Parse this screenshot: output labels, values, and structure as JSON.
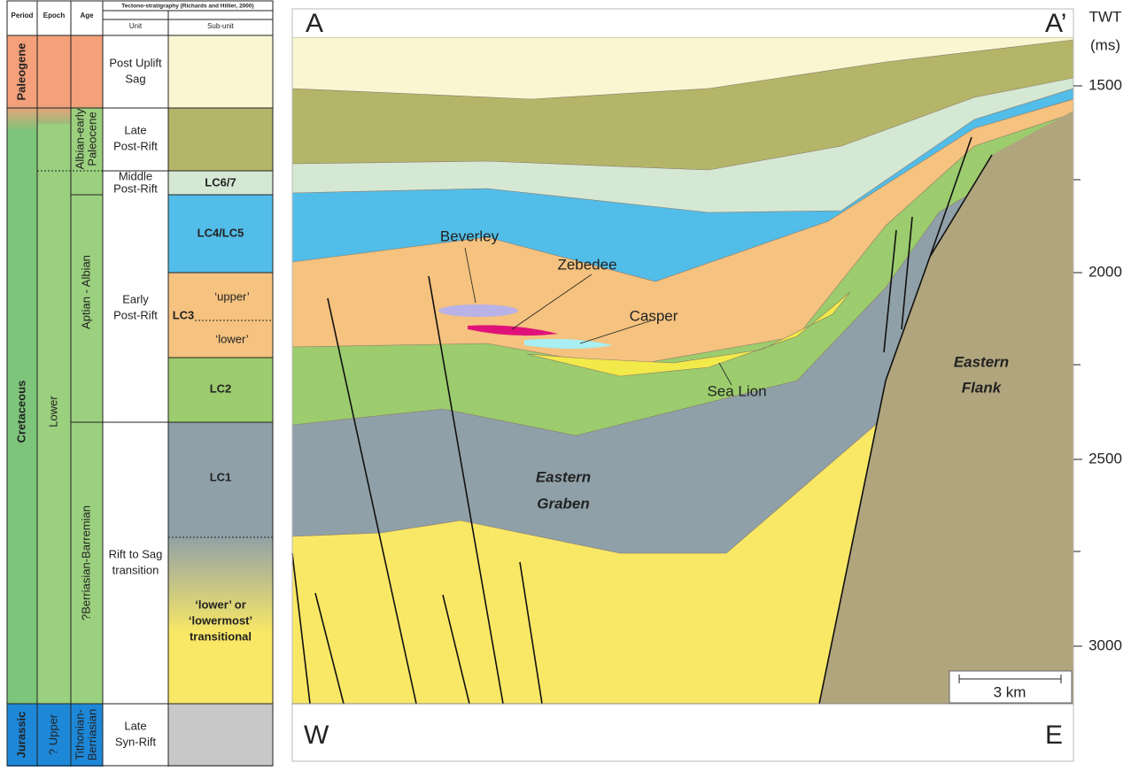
{
  "table": {
    "header": {
      "period": "Period",
      "epoch": "Epoch",
      "age": "Age",
      "group": "Tectono-stratigraphy (Richards and Hillier, 2000)",
      "unit": "Unit",
      "subunit": "Sub-unit"
    },
    "periods": [
      "Paleogene",
      "Cretaceous",
      "Jurassic"
    ],
    "epochs": [
      "Lower",
      "? Upper"
    ],
    "ages": [
      [
        "Albian-early",
        "Paleocene"
      ],
      "Aptian - Albian",
      "?Berriasian-Barremian",
      [
        "Tithonian-",
        "Berriasian"
      ]
    ],
    "units": [
      [
        "Post Uplift",
        "Sag"
      ],
      [
        "Late",
        "Post-Rift"
      ],
      [
        "Middle",
        "Post-Rift"
      ],
      [
        "Early",
        "Post-Rift"
      ],
      [
        "Rift to Sag",
        "transition"
      ],
      [
        "Late",
        "Syn-Rift"
      ]
    ],
    "subunits": [
      "LC6/7",
      "LC4/LC5",
      "LC3",
      "‘upper’",
      "‘lower’",
      "LC2",
      "LC1",
      [
        "‘lower’ or",
        "‘lowermost’",
        "transitional"
      ]
    ]
  },
  "section": {
    "ends": [
      "A",
      "A’"
    ],
    "directions": [
      "W",
      "E"
    ],
    "axis_title": "TWT",
    "axis_unit": "(ms)",
    "ticks": [
      1500,
      2000,
      2500,
      3000
    ],
    "labels": [
      "Beverley",
      "Zebedee",
      "Casper",
      "Sea Lion",
      [
        "Eastern",
        "Graben"
      ],
      [
        "Eastern",
        "Flank"
      ]
    ],
    "scale": "3 km"
  }
}
